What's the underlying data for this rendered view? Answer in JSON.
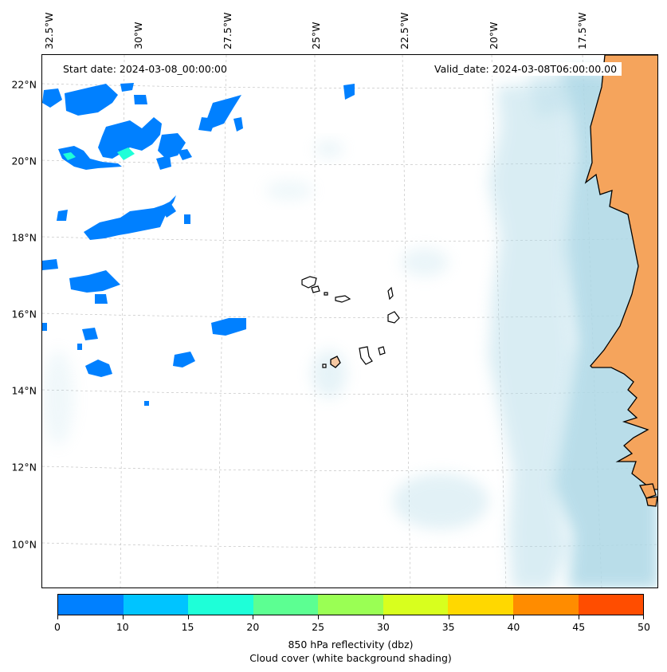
{
  "map": {
    "start_date": "Start date: 2024-03-08_00:00:00",
    "valid_date": "Valid_date: 2024-03-08T06:00:00.00",
    "lon_labels": [
      "32.5°W",
      "30°W",
      "27.5°W",
      "25°W",
      "22.5°W",
      "20°W",
      "17.5°W"
    ],
    "lat_labels": [
      "22°N",
      "20°N",
      "18°N",
      "16°N",
      "14°N",
      "12°N",
      "10°N"
    ],
    "colors": {
      "land": "#f5a45c",
      "cloud": "#add8e6",
      "coast": "#000000",
      "grid": "#bbbbbb"
    },
    "icon": "weather-map"
  },
  "colorbar": {
    "ticks": [
      "0",
      "10",
      "15",
      "20",
      "25",
      "30",
      "35",
      "40",
      "45",
      "50"
    ],
    "colors": [
      "#0080ff",
      "#00c4ff",
      "#1effd8",
      "#5cff92",
      "#9aff54",
      "#d8ff1e",
      "#ffd800",
      "#ff8c00",
      "#ff4d00"
    ],
    "label_line1": "850 hPa reflectivity (dbz)",
    "label_line2": "Cloud cover (white background shading)"
  }
}
